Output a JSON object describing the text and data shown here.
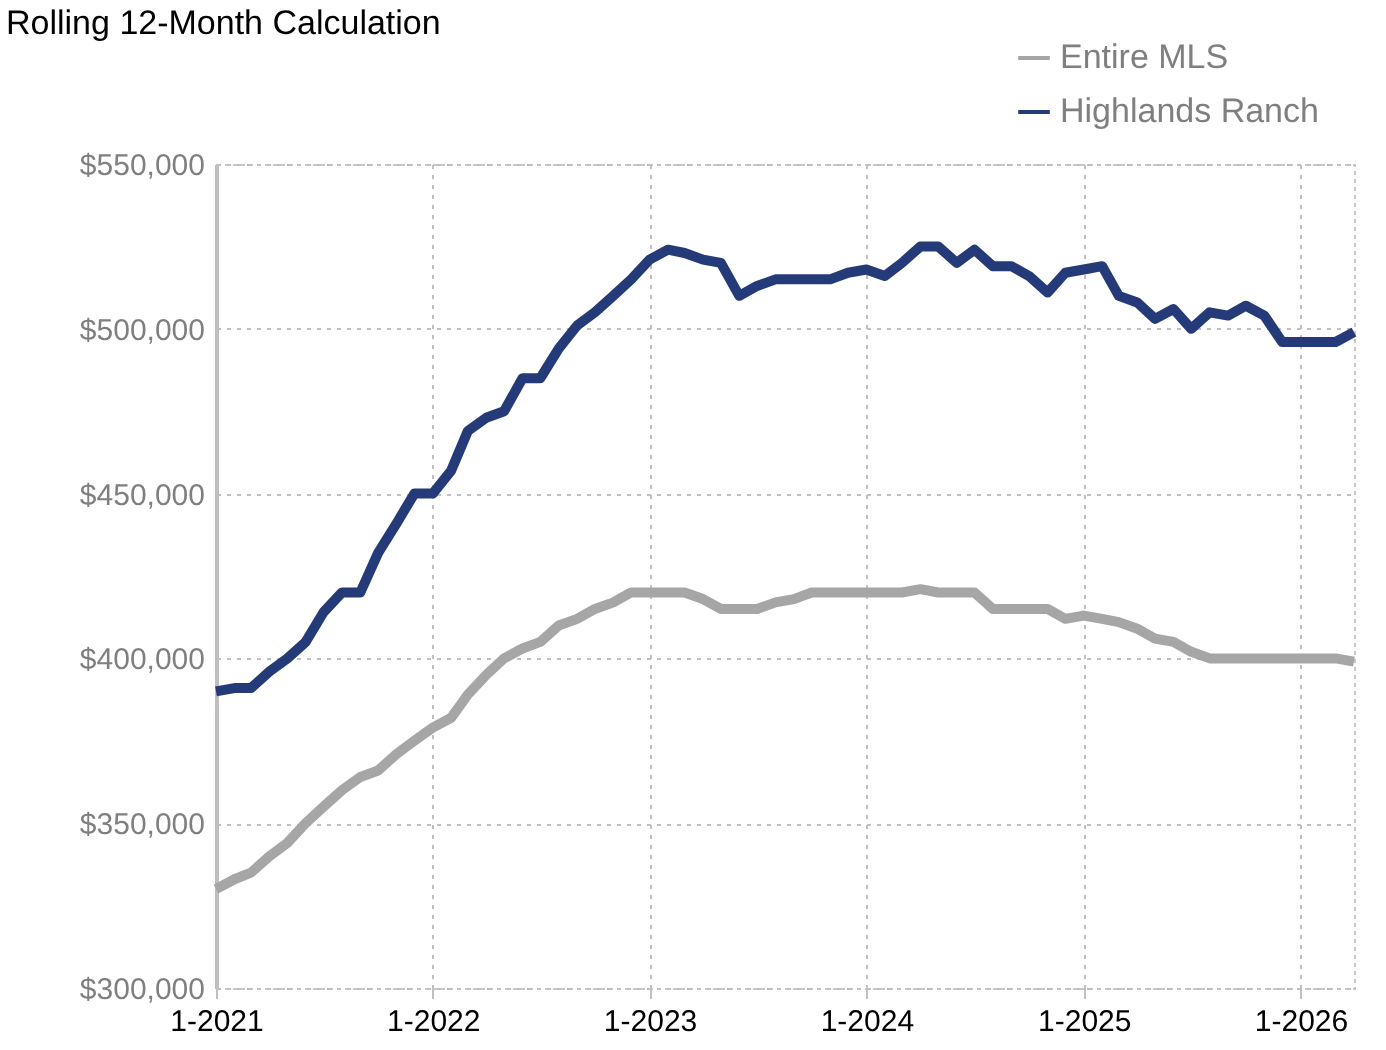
{
  "chart_data": {
    "type": "line",
    "title": "Rolling 12-Month Calculation",
    "legend": "top right",
    "grid": true,
    "line_style": "solid",
    "marker": "none",
    "x": [
      "2021-01",
      "2021-02",
      "2021-03",
      "2021-04",
      "2021-05",
      "2021-06",
      "2021-07",
      "2021-08",
      "2021-09",
      "2021-10",
      "2021-11",
      "2021-12",
      "2022-01",
      "2022-02",
      "2022-03",
      "2022-04",
      "2022-05",
      "2022-06",
      "2022-07",
      "2022-08",
      "2022-09",
      "2022-10",
      "2022-11",
      "2022-12",
      "2023-01",
      "2023-02",
      "2023-03",
      "2023-04",
      "2023-05",
      "2023-06",
      "2023-07",
      "2023-08",
      "2023-09",
      "2023-10",
      "2023-11",
      "2023-12",
      "2024-01",
      "2024-02",
      "2024-03",
      "2024-04",
      "2024-05",
      "2024-06",
      "2024-07",
      "2024-08",
      "2024-09",
      "2024-10",
      "2024-11",
      "2024-12",
      "2025-01",
      "2025-02",
      "2025-03",
      "2025-04",
      "2025-05",
      "2025-06",
      "2025-07",
      "2025-08",
      "2025-09",
      "2025-10",
      "2025-11",
      "2025-12",
      "2026-01",
      "2026-02",
      "2026-03",
      "2026-04"
    ],
    "xlim": [
      "2021-01",
      "2026-04"
    ],
    "xticks": [
      {
        "value": "2021-01",
        "label": "1-2021"
      },
      {
        "value": "2022-01",
        "label": "1-2022"
      },
      {
        "value": "2023-01",
        "label": "1-2023"
      },
      {
        "value": "2024-01",
        "label": "1-2024"
      },
      {
        "value": "2025-01",
        "label": "1-2025"
      },
      {
        "value": "2026-01",
        "label": "1-2026"
      }
    ],
    "ylim": [
      300000,
      550000
    ],
    "yticks": [
      {
        "value": 300000,
        "label": "$300,000"
      },
      {
        "value": 350000,
        "label": "$350,000"
      },
      {
        "value": 400000,
        "label": "$400,000"
      },
      {
        "value": 450000,
        "label": "$450,000"
      },
      {
        "value": 500000,
        "label": "$500,000"
      },
      {
        "value": 550000,
        "label": "$550,000"
      }
    ],
    "series": [
      {
        "name": "Entire MLS",
        "color": "#a6a6a6",
        "values": [
          330000,
          333000,
          335000,
          340000,
          344000,
          350000,
          355000,
          360000,
          364000,
          366000,
          371000,
          375000,
          379000,
          382000,
          389000,
          395000,
          400000,
          403000,
          405000,
          410000,
          412000,
          415000,
          417000,
          420000,
          420000,
          420000,
          420000,
          418000,
          415000,
          415000,
          415000,
          417000,
          418000,
          420000,
          420000,
          420000,
          420000,
          420000,
          420000,
          421000,
          420000,
          420000,
          420000,
          415000,
          415000,
          415000,
          415000,
          412000,
          413000,
          412000,
          411000,
          409000,
          406000,
          405000,
          402000,
          400000,
          400000,
          400000,
          400000,
          400000,
          400000,
          400000,
          400000,
          399000
        ]
      },
      {
        "name": "Highlands Ranch",
        "color": "#253a78",
        "values": [
          390000,
          391000,
          391000,
          396000,
          400000,
          405000,
          414000,
          420000,
          420000,
          432000,
          441000,
          450000,
          450000,
          457000,
          469000,
          473000,
          475000,
          485000,
          485000,
          494000,
          501000,
          505000,
          510000,
          515000,
          521000,
          524000,
          523000,
          521000,
          520000,
          510000,
          513000,
          515000,
          515000,
          515000,
          515000,
          517000,
          518000,
          516000,
          520000,
          525000,
          525000,
          520000,
          524000,
          519000,
          519000,
          516000,
          511000,
          517000,
          518000,
          519000,
          510000,
          508000,
          503000,
          506000,
          500000,
          505000,
          504000,
          507000,
          504000,
          496000,
          496000,
          496000,
          496000,
          499000
        ]
      }
    ]
  }
}
